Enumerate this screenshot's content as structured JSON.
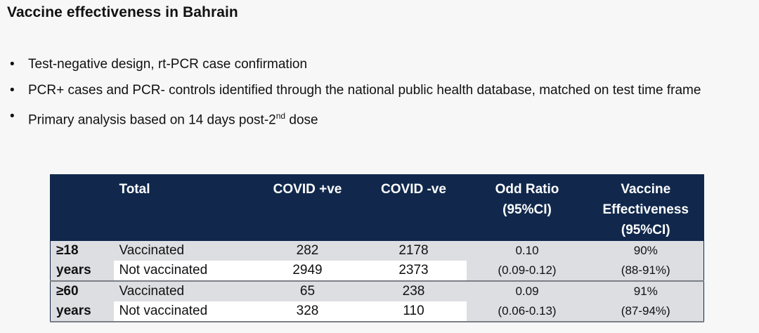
{
  "title": "Vaccine effectiveness in Bahrain",
  "bullets": [
    {
      "text": "Test-negative design, rt-PCR case confirmation"
    },
    {
      "text": "PCR+ cases and PCR- controls identified through the national public health database, matched on test time frame"
    },
    {
      "text_before": "Primary analysis based on 14 days post-2",
      "sup": "nd",
      "text_after": " dose"
    }
  ],
  "table": {
    "headers": {
      "total": "Total",
      "pos": "COVID +ve",
      "neg": "COVID -ve",
      "or_line1": "Odd Ratio",
      "or_line2": "(95%CI)",
      "ve_line1": "Vaccine",
      "ve_line2": "Effectiveness",
      "ve_line3": "(95%CI)"
    },
    "groups": [
      {
        "label_line1": "≥18",
        "label_line2": "years",
        "rows": [
          {
            "status": "Vaccinated",
            "pos": "282",
            "neg": "2178"
          },
          {
            "status": "Not vaccinated",
            "pos": "2949",
            "neg": "2373"
          }
        ],
        "or": "0.10",
        "or_ci": "(0.09-0.12)",
        "ve": "90%",
        "ve_ci": "(88-91%)"
      },
      {
        "label_line1": "≥60",
        "label_line2": "years",
        "rows": [
          {
            "status": "Vaccinated",
            "pos": "65",
            "neg": "238"
          },
          {
            "status": "Not vaccinated",
            "pos": "328",
            "neg": "110"
          }
        ],
        "or": "0.09",
        "or_ci": "(0.06-0.13)",
        "ve": "91%",
        "ve_ci": "(87-94%)"
      }
    ]
  }
}
